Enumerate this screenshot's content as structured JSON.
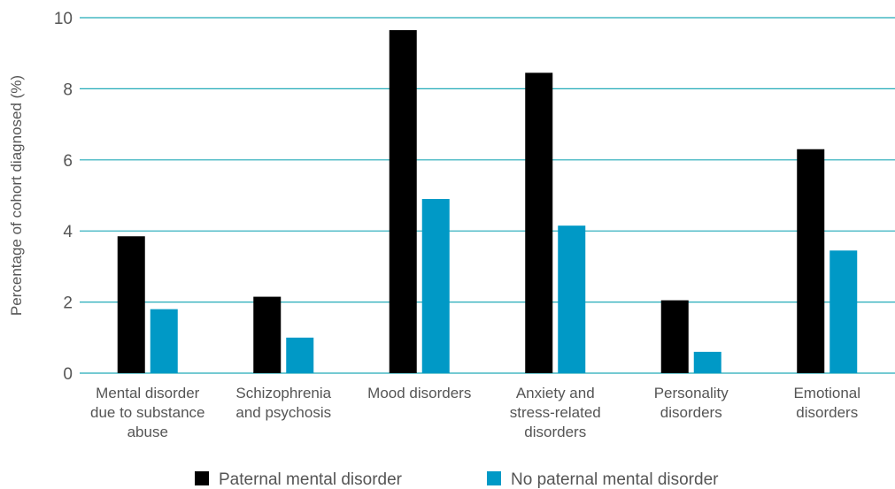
{
  "chart_data": {
    "type": "bar",
    "title": "",
    "xlabel": "",
    "ylabel": "Percentage of cohort diagnosed (%)",
    "ylim": [
      0,
      10
    ],
    "yticks": [
      0,
      2,
      4,
      6,
      8,
      10
    ],
    "grid": true,
    "legend_position": "bottom",
    "categories": [
      [
        "Mental disorder",
        "due to substance",
        "abuse"
      ],
      [
        "Schizophrenia",
        "and psychosis"
      ],
      [
        "Mood disorders"
      ],
      [
        "Anxiety and",
        "stress-related",
        "disorders"
      ],
      [
        "Personality",
        "disorders"
      ],
      [
        "Emotional",
        "disorders"
      ]
    ],
    "series": [
      {
        "name": "Paternal mental disorder",
        "color": "#000000",
        "values": [
          3.85,
          2.15,
          9.65,
          8.45,
          2.05,
          6.3
        ]
      },
      {
        "name": "No paternal mental disorder",
        "color": "#0099c6",
        "values": [
          1.8,
          1.0,
          4.9,
          4.15,
          0.6,
          3.45
        ]
      }
    ],
    "grid_color": "#22aab8"
  }
}
